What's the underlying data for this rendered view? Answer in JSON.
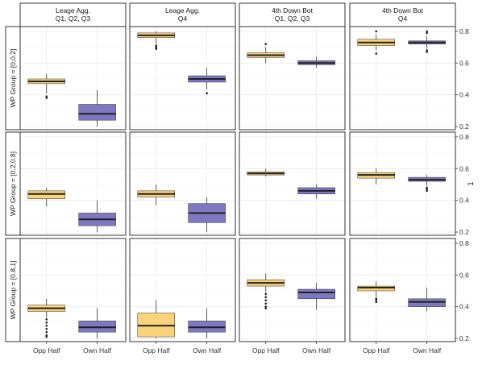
{
  "chart_data": {
    "type": "boxplot",
    "facet_columns": [
      "Leage Agg.\nQ1, Q2, Q3",
      "Leage Agg.\nQ4",
      "4th Down Bot\nQ1, Q2, Q3",
      "4th Down Bot\nQ4"
    ],
    "facet_rows": [
      "WP Group = [0,0.2]",
      "WP Group = [0.2,0.8]",
      "WP Group = [0.8,1]"
    ],
    "categories": [
      "Opp Half",
      "Own Half"
    ],
    "yticks": [
      0.2,
      0.4,
      0.6,
      0.8
    ],
    "ylim": [
      0.18,
      0.83
    ],
    "ylabel": "1",
    "grid": true,
    "legend": "none",
    "colors": {
      "Opp Half": "#f9d27a",
      "Own Half": "#7d78c0",
      "median": "#222222",
      "outlier": "#222222"
    },
    "panels": [
      {
        "row": 0,
        "col": 0,
        "boxes": [
          {
            "category": "Opp Half",
            "q1": 0.47,
            "median": 0.485,
            "q3": 0.5,
            "whisker_low": 0.41,
            "whisker_high": 0.53,
            "outliers": [
              0.39,
              0.38
            ]
          },
          {
            "category": "Own Half",
            "q1": 0.24,
            "median": 0.28,
            "q3": 0.34,
            "whisker_low": 0.2,
            "whisker_high": 0.43,
            "outliers": []
          }
        ]
      },
      {
        "row": 0,
        "col": 1,
        "boxes": [
          {
            "category": "Opp Half",
            "q1": 0.76,
            "median": 0.775,
            "q3": 0.79,
            "whisker_low": 0.72,
            "whisker_high": 0.8,
            "outliers": [
              0.71,
              0.7,
              0.69
            ]
          },
          {
            "category": "Own Half",
            "q1": 0.48,
            "median": 0.5,
            "q3": 0.52,
            "whisker_low": 0.43,
            "whisker_high": 0.57,
            "outliers": [
              0.41
            ]
          }
        ]
      },
      {
        "row": 0,
        "col": 2,
        "boxes": [
          {
            "category": "Opp Half",
            "q1": 0.635,
            "median": 0.65,
            "q3": 0.665,
            "whisker_low": 0.6,
            "whisker_high": 0.7,
            "outliers": [
              0.72
            ]
          },
          {
            "category": "Own Half",
            "q1": 0.59,
            "median": 0.6,
            "q3": 0.615,
            "whisker_low": 0.57,
            "whisker_high": 0.64,
            "outliers": []
          }
        ]
      },
      {
        "row": 0,
        "col": 3,
        "boxes": [
          {
            "category": "Opp Half",
            "q1": 0.71,
            "median": 0.73,
            "q3": 0.75,
            "whisker_low": 0.68,
            "whisker_high": 0.78,
            "outliers": [
              0.8,
              0.66
            ]
          },
          {
            "category": "Own Half",
            "q1": 0.72,
            "median": 0.73,
            "q3": 0.74,
            "whisker_low": 0.69,
            "whisker_high": 0.77,
            "outliers": [
              0.8,
              0.79,
              0.68,
              0.67
            ]
          }
        ]
      },
      {
        "row": 1,
        "col": 0,
        "boxes": [
          {
            "category": "Opp Half",
            "q1": 0.41,
            "median": 0.44,
            "q3": 0.46,
            "whisker_low": 0.36,
            "whisker_high": 0.48,
            "outliers": []
          },
          {
            "category": "Own Half",
            "q1": 0.24,
            "median": 0.28,
            "q3": 0.32,
            "whisker_low": 0.2,
            "whisker_high": 0.4,
            "outliers": []
          }
        ]
      },
      {
        "row": 1,
        "col": 1,
        "boxes": [
          {
            "category": "Opp Half",
            "q1": 0.42,
            "median": 0.44,
            "q3": 0.46,
            "whisker_low": 0.37,
            "whisker_high": 0.5,
            "outliers": []
          },
          {
            "category": "Own Half",
            "q1": 0.26,
            "median": 0.32,
            "q3": 0.38,
            "whisker_low": 0.2,
            "whisker_high": 0.42,
            "outliers": []
          }
        ]
      },
      {
        "row": 1,
        "col": 2,
        "boxes": [
          {
            "category": "Opp Half",
            "q1": 0.56,
            "median": 0.57,
            "q3": 0.58,
            "whisker_low": 0.55,
            "whisker_high": 0.6,
            "outliers": []
          },
          {
            "category": "Own Half",
            "q1": 0.44,
            "median": 0.46,
            "q3": 0.48,
            "whisker_low": 0.41,
            "whisker_high": 0.5,
            "outliers": []
          }
        ]
      },
      {
        "row": 1,
        "col": 3,
        "boxes": [
          {
            "category": "Opp Half",
            "q1": 0.54,
            "median": 0.56,
            "q3": 0.575,
            "whisker_low": 0.5,
            "whisker_high": 0.6,
            "outliers": []
          },
          {
            "category": "Own Half",
            "q1": 0.52,
            "median": 0.53,
            "q3": 0.545,
            "whisker_low": 0.49,
            "whisker_high": 0.56,
            "outliers": [
              0.48,
              0.47,
              0.46
            ]
          }
        ]
      },
      {
        "row": 2,
        "col": 0,
        "boxes": [
          {
            "category": "Opp Half",
            "q1": 0.37,
            "median": 0.39,
            "q3": 0.41,
            "whisker_low": 0.33,
            "whisker_high": 0.45,
            "outliers": [
              0.32,
              0.3,
              0.28,
              0.26,
              0.24,
              0.22,
              0.21
            ]
          },
          {
            "category": "Own Half",
            "q1": 0.24,
            "median": 0.27,
            "q3": 0.31,
            "whisker_low": 0.2,
            "whisker_high": 0.39,
            "outliers": []
          }
        ]
      },
      {
        "row": 2,
        "col": 1,
        "boxes": [
          {
            "category": "Opp Half",
            "q1": 0.21,
            "median": 0.28,
            "q3": 0.36,
            "whisker_low": 0.2,
            "whisker_high": 0.44,
            "outliers": []
          },
          {
            "category": "Own Half",
            "q1": 0.24,
            "median": 0.27,
            "q3": 0.31,
            "whisker_low": 0.2,
            "whisker_high": 0.39,
            "outliers": []
          }
        ]
      },
      {
        "row": 2,
        "col": 2,
        "boxes": [
          {
            "category": "Opp Half",
            "q1": 0.53,
            "median": 0.55,
            "q3": 0.57,
            "whisker_low": 0.49,
            "whisker_high": 0.61,
            "outliers": [
              0.48,
              0.46,
              0.44,
              0.42,
              0.4,
              0.39
            ]
          },
          {
            "category": "Own Half",
            "q1": 0.45,
            "median": 0.49,
            "q3": 0.51,
            "whisker_low": 0.38,
            "whisker_high": 0.55,
            "outliers": []
          }
        ]
      },
      {
        "row": 2,
        "col": 3,
        "boxes": [
          {
            "category": "Opp Half",
            "q1": 0.5,
            "median": 0.52,
            "q3": 0.53,
            "whisker_low": 0.46,
            "whisker_high": 0.56,
            "outliers": [
              0.45,
              0.44,
              0.43
            ]
          },
          {
            "category": "Own Half",
            "q1": 0.4,
            "median": 0.43,
            "q3": 0.45,
            "whisker_low": 0.37,
            "whisker_high": 0.52,
            "outliers": []
          }
        ]
      }
    ]
  }
}
